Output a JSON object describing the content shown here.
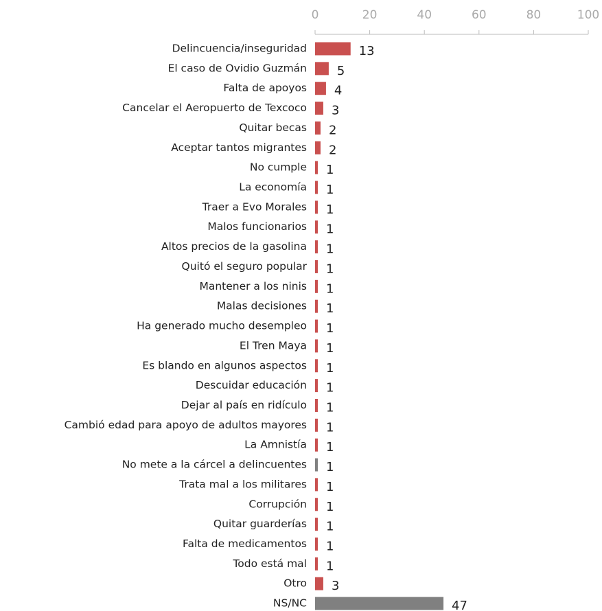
{
  "chart_data": {
    "type": "bar",
    "orientation": "horizontal",
    "categories": [
      "Delincuencia/inseguridad",
      "El caso de Ovidio Guzmán",
      "Falta de apoyos",
      "Cancelar el Aeropuerto de Texcoco",
      "Quitar becas",
      "Aceptar tantos migrantes",
      "No cumple",
      "La economía",
      "Traer a Evo Morales",
      "Malos funcionarios",
      "Altos precios de la gasolina",
      "Quitó el seguro popular",
      "Mantener a los ninis",
      "Malas decisiones",
      "Ha generado mucho desempleo",
      "El Tren Maya",
      "Es blando en algunos aspectos",
      "Descuidar educación",
      "Dejar al país en ridículo",
      "Cambió edad para apoyo de adultos mayores",
      "La Amnistía",
      "No mete a la cárcel a delincuentes",
      "Trata mal a los militares",
      "Corrupción",
      "Quitar guarderías",
      "Falta de medicamentos",
      "Todo está mal",
      "Otro",
      "NS/NC"
    ],
    "values": [
      13,
      5,
      4,
      3,
      2,
      2,
      1,
      1,
      1,
      1,
      1,
      1,
      1,
      1,
      1,
      1,
      1,
      1,
      1,
      1,
      1,
      1,
      1,
      1,
      1,
      1,
      1,
      3,
      47
    ],
    "colors": [
      "#c9504f",
      "#c9504f",
      "#c9504f",
      "#c9504f",
      "#c9504f",
      "#c9504f",
      "#c9504f",
      "#c9504f",
      "#c9504f",
      "#c9504f",
      "#c9504f",
      "#c9504f",
      "#c9504f",
      "#c9504f",
      "#c9504f",
      "#c9504f",
      "#c9504f",
      "#c9504f",
      "#c9504f",
      "#c9504f",
      "#c9504f",
      "#808080",
      "#c9504f",
      "#c9504f",
      "#c9504f",
      "#c9504f",
      "#c9504f",
      "#c9504f",
      "#808080"
    ],
    "xlim": [
      0,
      100
    ],
    "xticks": [
      0,
      20,
      40,
      60,
      80,
      100
    ]
  }
}
